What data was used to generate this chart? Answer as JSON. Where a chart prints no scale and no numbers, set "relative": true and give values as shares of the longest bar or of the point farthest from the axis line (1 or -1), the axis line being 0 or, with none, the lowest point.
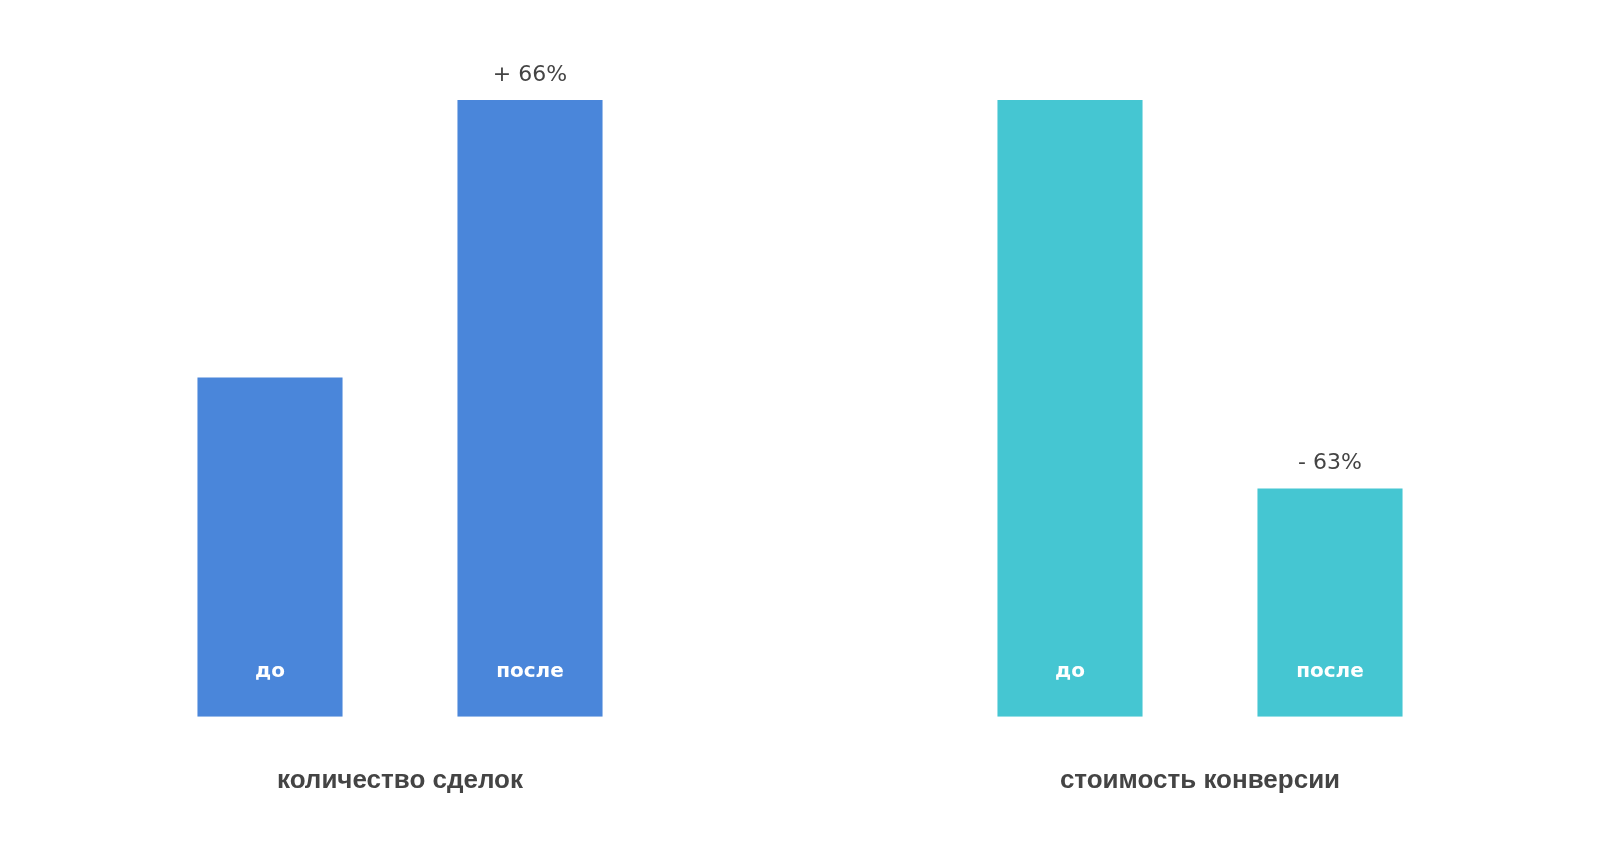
{
  "chart_data": [
    {
      "type": "bar",
      "relative": true,
      "xlabel": "количество сделок",
      "categories": [
        "до",
        "после"
      ],
      "values": [
        0.55,
        1
      ],
      "colors": [
        "#4a86da",
        "#4a86da"
      ],
      "tick_labels": "x",
      "annotations": [
        "+ 66%"
      ]
    },
    {
      "type": "bar",
      "relative": true,
      "xlabel": "стоимость конверсии",
      "categories": [
        "до",
        "после"
      ],
      "values": [
        1,
        0.37
      ],
      "colors": [
        "#45c6d2",
        "#45c6d2"
      ],
      "tick_labels": "x",
      "annotations": [
        "- 63%"
      ]
    }
  ]
}
